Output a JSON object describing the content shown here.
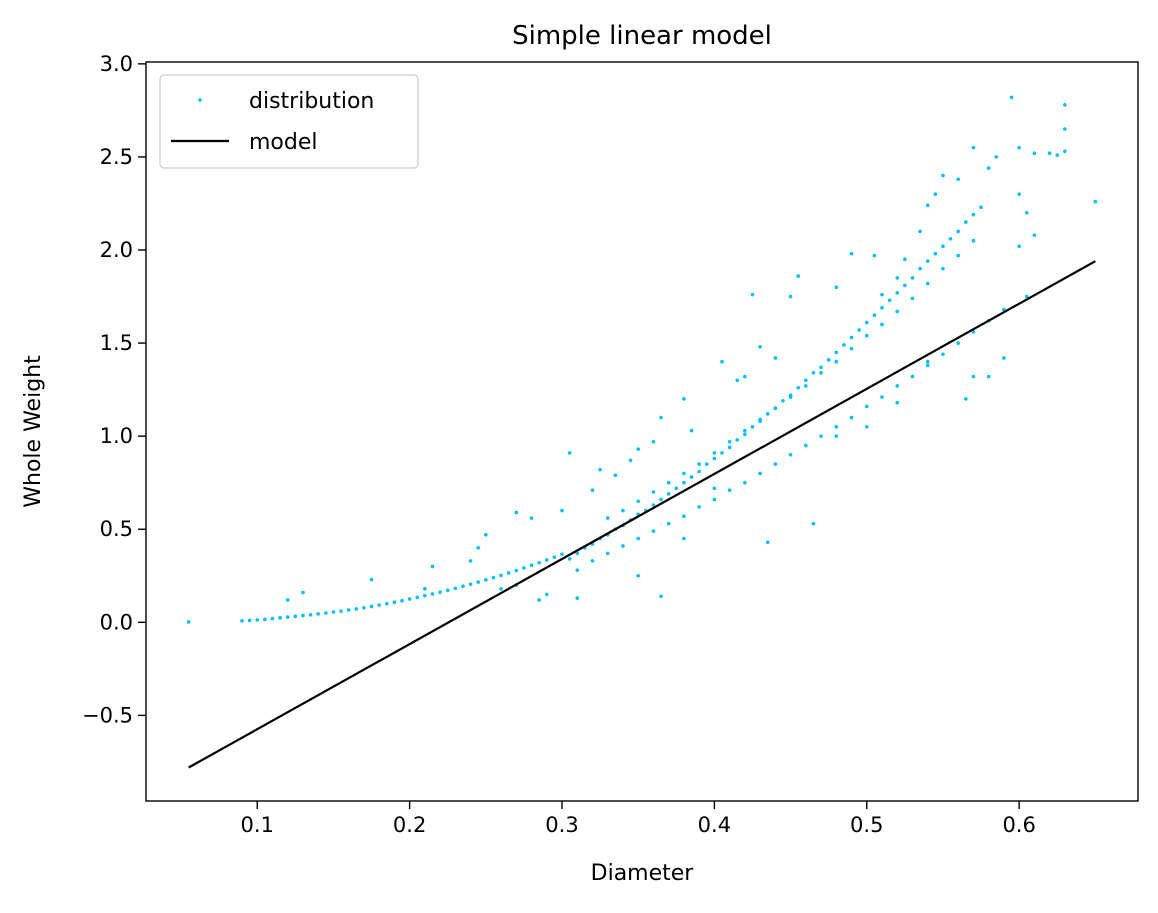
{
  "chart_data": {
    "type": "scatter",
    "title": "Simple linear model",
    "xlabel": "Diameter",
    "ylabel": "Whole Weight",
    "xlim": [
      0.027,
      0.678
    ],
    "ylim": [
      -0.96,
      3.01
    ],
    "xticks": [
      0.1,
      0.2,
      0.3,
      0.4,
      0.5,
      0.6
    ],
    "xtick_labels": [
      "0.1",
      "0.2",
      "0.3",
      "0.4",
      "0.5",
      "0.6"
    ],
    "yticks": [
      -0.5,
      0.0,
      0.5,
      1.0,
      1.5,
      2.0,
      2.5,
      3.0
    ],
    "ytick_labels": [
      "−0.5",
      "0.0",
      "0.5",
      "1.0",
      "1.5",
      "2.0",
      "2.5",
      "3.0"
    ],
    "grid": false,
    "legend_position": "top-left",
    "series": [
      {
        "name": "distribution",
        "kind": "scatter",
        "color": "#00bfff",
        "points": [
          [
            0.055,
            0.002
          ],
          [
            0.09,
            0.008
          ],
          [
            0.095,
            0.01
          ],
          [
            0.1,
            0.013
          ],
          [
            0.105,
            0.016
          ],
          [
            0.11,
            0.02
          ],
          [
            0.115,
            0.024
          ],
          [
            0.12,
            0.028
          ],
          [
            0.125,
            0.032
          ],
          [
            0.13,
            0.036
          ],
          [
            0.135,
            0.04
          ],
          [
            0.14,
            0.045
          ],
          [
            0.145,
            0.05
          ],
          [
            0.15,
            0.055
          ],
          [
            0.155,
            0.06
          ],
          [
            0.16,
            0.066
          ],
          [
            0.165,
            0.072
          ],
          [
            0.17,
            0.078
          ],
          [
            0.175,
            0.085
          ],
          [
            0.18,
            0.092
          ],
          [
            0.185,
            0.1
          ],
          [
            0.19,
            0.108
          ],
          [
            0.195,
            0.116
          ],
          [
            0.2,
            0.125
          ],
          [
            0.205,
            0.134
          ],
          [
            0.21,
            0.143
          ],
          [
            0.215,
            0.152
          ],
          [
            0.22,
            0.162
          ],
          [
            0.225,
            0.172
          ],
          [
            0.23,
            0.183
          ],
          [
            0.235,
            0.194
          ],
          [
            0.24,
            0.205
          ],
          [
            0.245,
            0.216
          ],
          [
            0.25,
            0.228
          ],
          [
            0.255,
            0.24
          ],
          [
            0.26,
            0.252
          ],
          [
            0.265,
            0.265
          ],
          [
            0.27,
            0.278
          ],
          [
            0.275,
            0.292
          ],
          [
            0.28,
            0.306
          ],
          [
            0.285,
            0.32
          ],
          [
            0.29,
            0.335
          ],
          [
            0.295,
            0.35
          ],
          [
            0.3,
            0.366
          ],
          [
            0.12,
            0.12
          ],
          [
            0.13,
            0.16
          ],
          [
            0.175,
            0.23
          ],
          [
            0.21,
            0.18
          ],
          [
            0.215,
            0.3
          ],
          [
            0.245,
            0.4
          ],
          [
            0.25,
            0.47
          ],
          [
            0.27,
            0.59
          ],
          [
            0.28,
            0.56
          ],
          [
            0.3,
            0.6
          ],
          [
            0.305,
            0.91
          ],
          [
            0.32,
            0.71
          ],
          [
            0.325,
            0.82
          ],
          [
            0.335,
            0.79
          ],
          [
            0.345,
            0.87
          ],
          [
            0.35,
            0.93
          ],
          [
            0.36,
            0.97
          ],
          [
            0.365,
            1.1
          ],
          [
            0.38,
            1.2
          ],
          [
            0.385,
            1.03
          ],
          [
            0.405,
            1.4
          ],
          [
            0.415,
            1.3
          ],
          [
            0.42,
            1.32
          ],
          [
            0.425,
            1.76
          ],
          [
            0.43,
            1.48
          ],
          [
            0.44,
            1.42
          ],
          [
            0.45,
            1.75
          ],
          [
            0.455,
            1.86
          ],
          [
            0.48,
            1.8
          ],
          [
            0.49,
            1.98
          ],
          [
            0.505,
            1.97
          ],
          [
            0.51,
            1.76
          ],
          [
            0.52,
            1.85
          ],
          [
            0.525,
            1.95
          ],
          [
            0.535,
            2.1
          ],
          [
            0.54,
            2.24
          ],
          [
            0.545,
            2.3
          ],
          [
            0.55,
            2.4
          ],
          [
            0.56,
            2.38
          ],
          [
            0.57,
            2.55
          ],
          [
            0.58,
            2.44
          ],
          [
            0.585,
            2.5
          ],
          [
            0.595,
            2.82
          ],
          [
            0.6,
            2.55
          ],
          [
            0.61,
            2.52
          ],
          [
            0.62,
            2.52
          ],
          [
            0.625,
            2.51
          ],
          [
            0.63,
            2.78
          ],
          [
            0.63,
            2.65
          ],
          [
            0.63,
            2.53
          ],
          [
            0.65,
            2.26
          ],
          [
            0.6,
            2.02
          ],
          [
            0.61,
            2.08
          ],
          [
            0.6,
            2.3
          ],
          [
            0.605,
            2.2
          ],
          [
            0.605,
            1.75
          ],
          [
            0.59,
            1.42
          ],
          [
            0.58,
            1.32
          ],
          [
            0.57,
            1.32
          ],
          [
            0.565,
            1.2
          ],
          [
            0.54,
            1.4
          ],
          [
            0.52,
            1.18
          ],
          [
            0.5,
            1.05
          ],
          [
            0.48,
            1.0
          ],
          [
            0.465,
            0.53
          ],
          [
            0.435,
            0.43
          ],
          [
            0.4,
            0.72
          ],
          [
            0.38,
            0.45
          ],
          [
            0.365,
            0.14
          ],
          [
            0.35,
            0.25
          ],
          [
            0.31,
            0.13
          ],
          [
            0.29,
            0.15
          ],
          [
            0.285,
            0.12
          ],
          [
            0.27,
            0.2
          ],
          [
            0.26,
            0.18
          ],
          [
            0.24,
            0.33
          ],
          [
            0.305,
            0.34
          ],
          [
            0.31,
            0.37
          ],
          [
            0.315,
            0.4
          ],
          [
            0.32,
            0.42
          ],
          [
            0.325,
            0.45
          ],
          [
            0.33,
            0.47
          ],
          [
            0.335,
            0.5
          ],
          [
            0.34,
            0.52
          ],
          [
            0.345,
            0.55
          ],
          [
            0.35,
            0.58
          ],
          [
            0.355,
            0.6
          ],
          [
            0.36,
            0.63
          ],
          [
            0.365,
            0.66
          ],
          [
            0.37,
            0.69
          ],
          [
            0.375,
            0.72
          ],
          [
            0.38,
            0.75
          ],
          [
            0.385,
            0.78
          ],
          [
            0.39,
            0.81
          ],
          [
            0.395,
            0.85
          ],
          [
            0.4,
            0.88
          ],
          [
            0.405,
            0.91
          ],
          [
            0.41,
            0.94
          ],
          [
            0.415,
            0.98
          ],
          [
            0.42,
            1.01
          ],
          [
            0.425,
            1.05
          ],
          [
            0.43,
            1.08
          ],
          [
            0.435,
            1.12
          ],
          [
            0.44,
            1.15
          ],
          [
            0.445,
            1.19
          ],
          [
            0.45,
            1.22
          ],
          [
            0.455,
            1.26
          ],
          [
            0.46,
            1.3
          ],
          [
            0.465,
            1.34
          ],
          [
            0.47,
            1.37
          ],
          [
            0.475,
            1.41
          ],
          [
            0.48,
            1.45
          ],
          [
            0.485,
            1.49
          ],
          [
            0.49,
            1.53
          ],
          [
            0.495,
            1.57
          ],
          [
            0.5,
            1.61
          ],
          [
            0.505,
            1.65
          ],
          [
            0.51,
            1.69
          ],
          [
            0.515,
            1.73
          ],
          [
            0.52,
            1.77
          ],
          [
            0.525,
            1.81
          ],
          [
            0.53,
            1.85
          ],
          [
            0.535,
            1.9
          ],
          [
            0.54,
            1.94
          ],
          [
            0.545,
            1.98
          ],
          [
            0.55,
            2.02
          ],
          [
            0.555,
            2.06
          ],
          [
            0.56,
            2.1
          ],
          [
            0.565,
            2.15
          ],
          [
            0.57,
            2.19
          ],
          [
            0.575,
            2.23
          ],
          [
            0.31,
            0.28
          ],
          [
            0.32,
            0.33
          ],
          [
            0.33,
            0.37
          ],
          [
            0.34,
            0.41
          ],
          [
            0.35,
            0.45
          ],
          [
            0.36,
            0.49
          ],
          [
            0.37,
            0.53
          ],
          [
            0.38,
            0.57
          ],
          [
            0.39,
            0.62
          ],
          [
            0.4,
            0.66
          ],
          [
            0.41,
            0.71
          ],
          [
            0.42,
            0.75
          ],
          [
            0.43,
            0.8
          ],
          [
            0.44,
            0.85
          ],
          [
            0.45,
            0.9
          ],
          [
            0.46,
            0.95
          ],
          [
            0.47,
            1.0
          ],
          [
            0.48,
            1.05
          ],
          [
            0.49,
            1.1
          ],
          [
            0.5,
            1.16
          ],
          [
            0.51,
            1.21
          ],
          [
            0.52,
            1.27
          ],
          [
            0.53,
            1.32
          ],
          [
            0.54,
            1.38
          ],
          [
            0.55,
            1.44
          ],
          [
            0.56,
            1.5
          ],
          [
            0.57,
            1.56
          ],
          [
            0.58,
            1.62
          ],
          [
            0.59,
            1.68
          ],
          [
            0.33,
            0.56
          ],
          [
            0.34,
            0.6
          ],
          [
            0.35,
            0.65
          ],
          [
            0.36,
            0.7
          ],
          [
            0.37,
            0.75
          ],
          [
            0.38,
            0.8
          ],
          [
            0.39,
            0.85
          ],
          [
            0.4,
            0.91
          ],
          [
            0.41,
            0.97
          ],
          [
            0.42,
            1.03
          ],
          [
            0.43,
            1.09
          ],
          [
            0.44,
            1.15
          ],
          [
            0.45,
            1.21
          ],
          [
            0.46,
            1.27
          ],
          [
            0.47,
            1.34
          ],
          [
            0.48,
            1.4
          ],
          [
            0.49,
            1.47
          ],
          [
            0.5,
            1.54
          ],
          [
            0.51,
            1.6
          ],
          [
            0.52,
            1.67
          ],
          [
            0.53,
            1.74
          ],
          [
            0.54,
            1.82
          ],
          [
            0.55,
            1.9
          ],
          [
            0.56,
            1.97
          ],
          [
            0.57,
            2.05
          ]
        ]
      },
      {
        "name": "model",
        "kind": "line",
        "color": "#000000",
        "points": [
          [
            0.055,
            -0.78
          ],
          [
            0.65,
            1.94
          ]
        ]
      }
    ]
  }
}
